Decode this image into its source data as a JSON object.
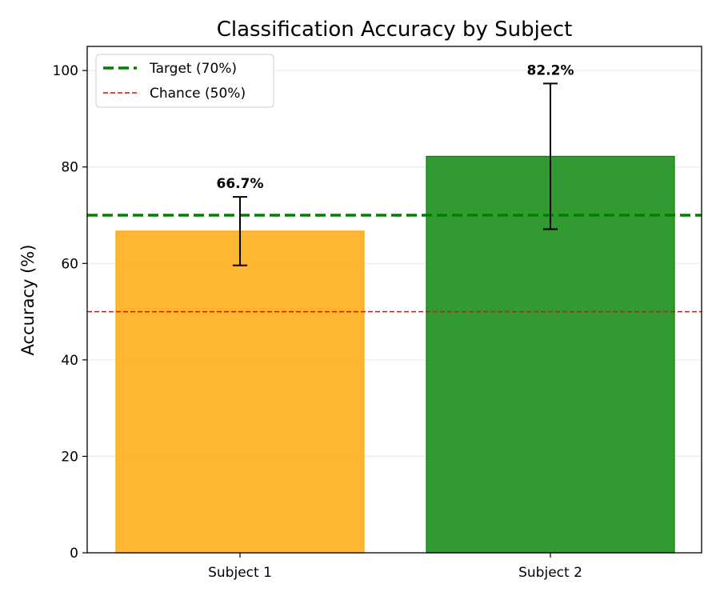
{
  "chart_data": {
    "type": "bar",
    "title": "Classification Accuracy by Subject",
    "xlabel": "",
    "ylabel": "Accuracy (%)",
    "categories": [
      "Subject 1",
      "Subject 2"
    ],
    "values": [
      66.7,
      82.2
    ],
    "errors": [
      7.1,
      15.1
    ],
    "data_labels": [
      "66.7%",
      "82.2%"
    ],
    "bar_colors": [
      "#FFA500",
      "#008000"
    ],
    "bar_alpha": 0.8,
    "ylim": [
      0,
      105
    ],
    "yticks": [
      0,
      20,
      40,
      60,
      80,
      100
    ],
    "grid": "horizontal",
    "reference_lines": [
      {
        "label": "Target (70%)",
        "value": 70,
        "color": "#008000",
        "style": "dashed-thick"
      },
      {
        "label": "Chance (50%)",
        "value": 50,
        "color": "#FF0000",
        "style": "dashed-thin"
      }
    ],
    "legend_position": "top-left"
  }
}
